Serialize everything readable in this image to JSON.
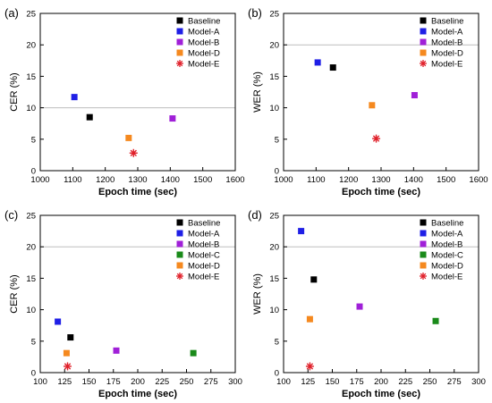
{
  "colors": {
    "Baseline": "#000000",
    "Model-A": "#1f1fe6",
    "Model-B": "#a020d8",
    "Model-C": "#1a8a1a",
    "Model-D": "#f5891f",
    "Model-E": "#e0202a",
    "gridline": "#bdbdbd"
  },
  "chart_data": [
    {
      "type": "scatter",
      "panel_label": "(a)",
      "xlabel": "Epoch time (sec)",
      "ylabel": "CER (%)",
      "xlim": [
        1000,
        1600
      ],
      "ylim": [
        0,
        25
      ],
      "xticks": [
        "1000",
        "1100",
        "1200",
        "1300",
        "1400",
        "1500",
        "1600"
      ],
      "yticks": [
        "0",
        "5",
        "10",
        "15",
        "20",
        "25"
      ],
      "reference_line_y": 10,
      "legend_position": "top-right",
      "series": [
        {
          "name": "Baseline",
          "marker": "square",
          "x": [
            1152
          ],
          "y": [
            8.5
          ]
        },
        {
          "name": "Model-A",
          "marker": "square",
          "x": [
            1105
          ],
          "y": [
            11.7
          ]
        },
        {
          "name": "Model-B",
          "marker": "square",
          "x": [
            1407
          ],
          "y": [
            8.3
          ]
        },
        {
          "name": "Model-D",
          "marker": "square",
          "x": [
            1272
          ],
          "y": [
            5.2
          ]
        },
        {
          "name": "Model-E",
          "marker": "asterisk",
          "x": [
            1287
          ],
          "y": [
            2.8
          ]
        }
      ]
    },
    {
      "type": "scatter",
      "panel_label": "(b)",
      "xlabel": "Epoch time (sec)",
      "ylabel": "WER (%)",
      "xlim": [
        1000,
        1600
      ],
      "ylim": [
        0,
        25
      ],
      "xticks": [
        "1000",
        "1100",
        "1200",
        "1300",
        "1400",
        "1500",
        "1600"
      ],
      "yticks": [
        "0",
        "5",
        "10",
        "15",
        "20",
        "25"
      ],
      "reference_line_y": 20,
      "legend_position": "top-right",
      "series": [
        {
          "name": "Baseline",
          "marker": "square",
          "x": [
            1152
          ],
          "y": [
            16.4
          ]
        },
        {
          "name": "Model-A",
          "marker": "square",
          "x": [
            1105
          ],
          "y": [
            17.2
          ]
        },
        {
          "name": "Model-B",
          "marker": "square",
          "x": [
            1403
          ],
          "y": [
            12.0
          ]
        },
        {
          "name": "Model-D",
          "marker": "square",
          "x": [
            1272
          ],
          "y": [
            10.4
          ]
        },
        {
          "name": "Model-E",
          "marker": "asterisk",
          "x": [
            1285
          ],
          "y": [
            5.1
          ]
        }
      ]
    },
    {
      "type": "scatter",
      "panel_label": "(c)",
      "xlabel": "Epoch time (sec)",
      "ylabel": "CER (%)",
      "xlim": [
        100,
        300
      ],
      "ylim": [
        0,
        25
      ],
      "xticks": [
        "100",
        "125",
        "150",
        "175",
        "200",
        "225",
        "250",
        "275",
        "300"
      ],
      "yticks": [
        "0",
        "5",
        "10",
        "15",
        "20",
        "25"
      ],
      "reference_line_y": 20,
      "legend_position": "top-right",
      "series": [
        {
          "name": "Baseline",
          "marker": "square",
          "x": [
            131
          ],
          "y": [
            5.6
          ]
        },
        {
          "name": "Model-A",
          "marker": "square",
          "x": [
            118
          ],
          "y": [
            8.1
          ]
        },
        {
          "name": "Model-B",
          "marker": "square",
          "x": [
            178
          ],
          "y": [
            3.5
          ]
        },
        {
          "name": "Model-C",
          "marker": "square",
          "x": [
            257
          ],
          "y": [
            3.1
          ]
        },
        {
          "name": "Model-D",
          "marker": "square",
          "x": [
            127
          ],
          "y": [
            3.1
          ]
        },
        {
          "name": "Model-E",
          "marker": "asterisk",
          "x": [
            128
          ],
          "y": [
            1.0
          ]
        }
      ]
    },
    {
      "type": "scatter",
      "panel_label": "(d)",
      "xlabel": "Epoch time (sec)",
      "ylabel": "WER (%)",
      "xlim": [
        100,
        300
      ],
      "ylim": [
        0,
        25
      ],
      "xticks": [
        "100",
        "125",
        "150",
        "175",
        "200",
        "225",
        "250",
        "275",
        "300"
      ],
      "yticks": [
        "0",
        "5",
        "10",
        "15",
        "20",
        "25"
      ],
      "reference_line_y": 20,
      "legend_position": "top-right",
      "series": [
        {
          "name": "Baseline",
          "marker": "square",
          "x": [
            131
          ],
          "y": [
            14.8
          ]
        },
        {
          "name": "Model-A",
          "marker": "square",
          "x": [
            118
          ],
          "y": [
            22.5
          ]
        },
        {
          "name": "Model-B",
          "marker": "square",
          "x": [
            178
          ],
          "y": [
            10.5
          ]
        },
        {
          "name": "Model-C",
          "marker": "square",
          "x": [
            256
          ],
          "y": [
            8.2
          ]
        },
        {
          "name": "Model-D",
          "marker": "square",
          "x": [
            127
          ],
          "y": [
            8.5
          ]
        },
        {
          "name": "Model-E",
          "marker": "asterisk",
          "x": [
            127
          ],
          "y": [
            1.0
          ]
        }
      ]
    }
  ]
}
